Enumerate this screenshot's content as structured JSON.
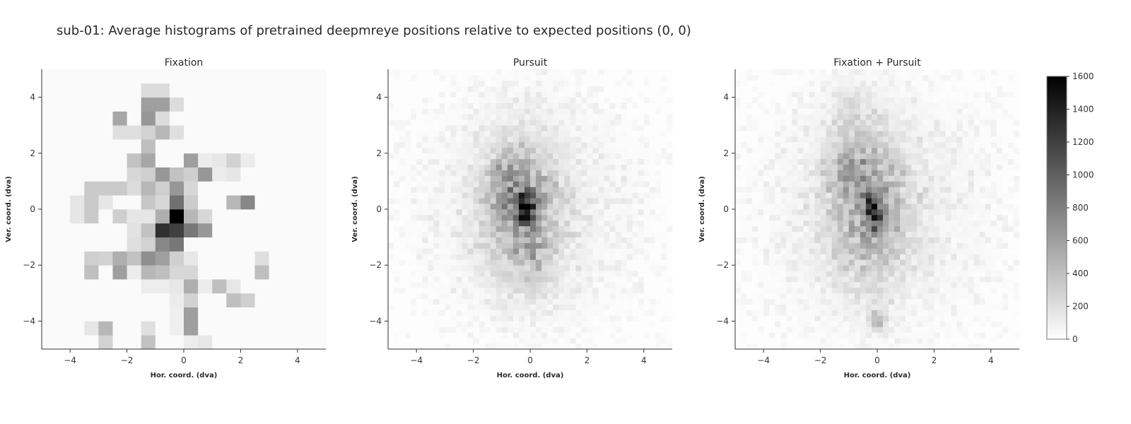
{
  "figure": {
    "title": "sub-01: Average histograms of pretrained deepmreye positions relative to expected positions (0, 0)"
  },
  "chart_data": {
    "type": "heatmap",
    "colormap": [
      "#ffffff",
      "#000000"
    ],
    "colorbar": {
      "range": [
        0,
        1600
      ],
      "ticks": [
        0,
        200,
        400,
        600,
        800,
        1000,
        1200,
        1400,
        1600
      ]
    },
    "panels": [
      {
        "title": "Fixation",
        "xlabel": "Hor. coord. (dva)",
        "ylabel": "Ver. coord. (dva)",
        "xlim": [
          -5,
          5
        ],
        "ylim": [
          -5,
          5
        ],
        "xticks": [
          -4,
          -2,
          0,
          2,
          4
        ],
        "yticks": [
          -4,
          -2,
          0,
          2,
          4
        ],
        "bins": 20,
        "base_level": 30,
        "cells": [
          [
            -0.75,
            4.25,
            220
          ],
          [
            -1.25,
            4.25,
            220
          ],
          [
            -1.25,
            3.75,
            600
          ],
          [
            -0.75,
            3.75,
            600
          ],
          [
            -0.25,
            3.75,
            220
          ],
          [
            -2.25,
            3.25,
            550
          ],
          [
            -1.25,
            3.25,
            650
          ],
          [
            -0.75,
            3.25,
            220
          ],
          [
            -2.25,
            2.75,
            200
          ],
          [
            -1.75,
            2.75,
            200
          ],
          [
            -1.25,
            2.75,
            280
          ],
          [
            -0.75,
            2.75,
            450
          ],
          [
            -0.25,
            2.75,
            200
          ],
          [
            -1.25,
            2.25,
            400
          ],
          [
            -1.75,
            1.75,
            380
          ],
          [
            -1.25,
            1.75,
            550
          ],
          [
            0.25,
            1.75,
            600
          ],
          [
            0.75,
            1.75,
            120
          ],
          [
            1.25,
            1.75,
            150
          ],
          [
            1.75,
            1.75,
            280
          ],
          [
            2.25,
            1.75,
            120
          ],
          [
            -1.75,
            1.25,
            250
          ],
          [
            -1.25,
            1.25,
            300
          ],
          [
            -0.75,
            1.25,
            650
          ],
          [
            -0.25,
            1.25,
            380
          ],
          [
            0.25,
            1.25,
            300
          ],
          [
            0.75,
            1.25,
            650
          ],
          [
            1.25,
            1.25,
            120
          ],
          [
            1.75,
            1.25,
            160
          ],
          [
            -3.25,
            0.75,
            330
          ],
          [
            -2.75,
            0.75,
            330
          ],
          [
            -2.25,
            0.75,
            330
          ],
          [
            -1.75,
            0.75,
            220
          ],
          [
            -1.25,
            0.75,
            450
          ],
          [
            -0.75,
            0.75,
            300
          ],
          [
            -0.25,
            0.75,
            650
          ],
          [
            0.25,
            0.75,
            250
          ],
          [
            -3.75,
            0.25,
            160
          ],
          [
            -3.25,
            0.25,
            330
          ],
          [
            -2.75,
            0.25,
            160
          ],
          [
            -1.25,
            0.25,
            350
          ],
          [
            -0.75,
            0.25,
            250
          ],
          [
            -0.25,
            0.25,
            900
          ],
          [
            0.25,
            0.25,
            320
          ],
          [
            1.75,
            0.25,
            450
          ],
          [
            2.25,
            0.25,
            750
          ],
          [
            -3.75,
            -0.25,
            160
          ],
          [
            -3.25,
            -0.25,
            330
          ],
          [
            -2.25,
            -0.25,
            300
          ],
          [
            -1.75,
            -0.25,
            160
          ],
          [
            -1.25,
            -0.25,
            160
          ],
          [
            -0.75,
            -0.25,
            500
          ],
          [
            -0.25,
            -0.25,
            1600
          ],
          [
            0.25,
            -0.25,
            450
          ],
          [
            0.75,
            -0.25,
            250
          ],
          [
            -1.75,
            -0.75,
            180
          ],
          [
            -1.25,
            -0.75,
            380
          ],
          [
            -0.75,
            -0.75,
            1300
          ],
          [
            -0.25,
            -0.75,
            1200
          ],
          [
            0.25,
            -0.75,
            850
          ],
          [
            0.75,
            -0.75,
            650
          ],
          [
            -1.75,
            -1.25,
            200
          ],
          [
            -1.25,
            -1.25,
            280
          ],
          [
            -0.75,
            -1.25,
            750
          ],
          [
            -0.25,
            -1.25,
            850
          ],
          [
            -3.25,
            -1.75,
            300
          ],
          [
            -2.75,
            -1.75,
            280
          ],
          [
            -2.25,
            -1.75,
            500
          ],
          [
            -1.75,
            -1.75,
            380
          ],
          [
            -1.25,
            -1.75,
            700
          ],
          [
            -0.75,
            -1.75,
            600
          ],
          [
            -0.25,
            -1.75,
            300
          ],
          [
            0.25,
            -1.75,
            150
          ],
          [
            2.75,
            -1.75,
            200
          ],
          [
            -3.25,
            -2.25,
            400
          ],
          [
            -2.25,
            -2.25,
            600
          ],
          [
            -1.75,
            -2.25,
            120
          ],
          [
            -1.25,
            -2.25,
            450
          ],
          [
            -0.75,
            -2.25,
            400
          ],
          [
            -0.25,
            -2.25,
            250
          ],
          [
            0.25,
            -2.25,
            250
          ],
          [
            2.75,
            -2.25,
            400
          ],
          [
            -1.25,
            -2.75,
            120
          ],
          [
            -0.75,
            -2.75,
            120
          ],
          [
            -0.25,
            -2.75,
            150
          ],
          [
            0.25,
            -2.75,
            500
          ],
          [
            0.75,
            -2.75,
            120
          ],
          [
            1.25,
            -2.75,
            400
          ],
          [
            1.75,
            -2.75,
            150
          ],
          [
            0.25,
            -3.25,
            280
          ],
          [
            1.75,
            -3.25,
            400
          ],
          [
            2.25,
            -3.25,
            300
          ],
          [
            -0.25,
            -3.25,
            120
          ],
          [
            0.25,
            -3.75,
            600
          ],
          [
            -0.25,
            -3.75,
            100
          ],
          [
            -3.25,
            -4.25,
            160
          ],
          [
            -2.75,
            -4.25,
            450
          ],
          [
            -1.25,
            -4.25,
            200
          ],
          [
            0.25,
            -4.25,
            600
          ],
          [
            -0.25,
            -4.25,
            100
          ],
          [
            -2.75,
            -4.75,
            280
          ],
          [
            -1.25,
            -4.75,
            380
          ],
          [
            0.25,
            -4.75,
            120
          ],
          [
            0.75,
            -4.75,
            150
          ]
        ]
      },
      {
        "title": "Pursuit",
        "xlabel": "Hor. coord. (dva)",
        "ylabel": "Ver. coord. (dva)",
        "xlim": [
          -5,
          5
        ],
        "ylim": [
          -5,
          5
        ],
        "xticks": [
          -4,
          -2,
          0,
          2,
          4
        ],
        "yticks": [
          -4,
          -2,
          0,
          2,
          4
        ],
        "bins": 50,
        "base_level": 10,
        "blobs": [
          {
            "x": -0.3,
            "y": 0.0,
            "sx": 0.9,
            "sy": 1.6,
            "amp": 500
          },
          {
            "x": -0.2,
            "y": 0.05,
            "sx": 0.25,
            "sy": 0.35,
            "amp": 1000
          },
          {
            "x": -0.8,
            "y": 1.2,
            "sx": 0.5,
            "sy": 0.6,
            "amp": 180
          },
          {
            "x": 0.3,
            "y": -1.8,
            "sx": 0.4,
            "sy": 0.8,
            "amp": 150
          },
          {
            "x": 0.0,
            "y": 0.0,
            "sx": 2.6,
            "sy": 2.8,
            "amp": 90
          }
        ],
        "noise_amp": 140,
        "seed": 7
      },
      {
        "title": "Fixation + Pursuit",
        "xlabel": "Hor. coord. (dva)",
        "ylabel": "Ver. coord. (dva)",
        "xlim": [
          -5,
          5
        ],
        "ylim": [
          -5,
          5
        ],
        "xticks": [
          -4,
          -2,
          0,
          2,
          4
        ],
        "yticks": [
          -4,
          -2,
          0,
          2,
          4
        ],
        "bins": 50,
        "base_level": 10,
        "blobs": [
          {
            "x": -0.3,
            "y": 0.2,
            "sx": 0.9,
            "sy": 1.8,
            "amp": 450
          },
          {
            "x": -0.1,
            "y": -0.1,
            "sx": 0.2,
            "sy": 0.4,
            "amp": 1100
          },
          {
            "x": -0.9,
            "y": 1.4,
            "sx": 0.5,
            "sy": 0.7,
            "amp": 200
          },
          {
            "x": -1.0,
            "y": 3.6,
            "sx": 0.4,
            "sy": 0.5,
            "amp": 150
          },
          {
            "x": 0.0,
            "y": -3.9,
            "sx": 0.2,
            "sy": 0.3,
            "amp": 300
          },
          {
            "x": 0.0,
            "y": 0.0,
            "sx": 2.6,
            "sy": 2.9,
            "amp": 100
          }
        ],
        "noise_amp": 150,
        "seed": 11
      }
    ]
  }
}
